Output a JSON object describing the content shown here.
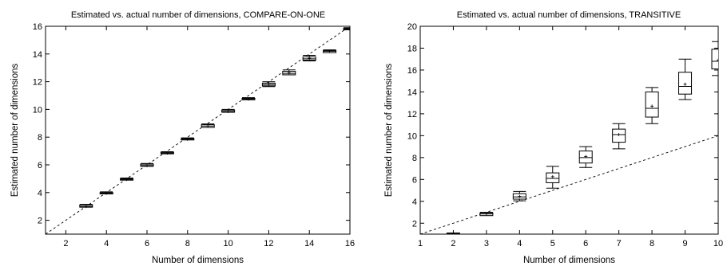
{
  "chart_data": [
    {
      "type": "boxplot",
      "title": "Estimated vs. actual number of dimensions, COMPARE-ON-ONE",
      "xlabel": "Number of dimensions",
      "ylabel": "Estimated number of dimensions",
      "xlim": [
        1,
        16
      ],
      "ylim": [
        1,
        16
      ],
      "xticks": [
        "2",
        "4",
        "6",
        "8",
        "10",
        "12",
        "14",
        "16"
      ],
      "yticks": [
        "2",
        "4",
        "6",
        "8",
        "10",
        "12",
        "14",
        "16"
      ],
      "reference_line": "y = x (dashed)",
      "x": [
        3,
        4,
        5,
        6,
        7,
        8,
        9,
        10,
        11,
        12,
        13,
        14,
        15,
        16
      ],
      "boxes": [
        {
          "x": 3,
          "min": 2.95,
          "q1": 2.95,
          "median": 3.0,
          "q3": 3.1,
          "max": 3.15,
          "mean": 3.0
        },
        {
          "x": 4,
          "min": 3.9,
          "q1": 3.9,
          "median": 3.95,
          "q3": 4.0,
          "max": 4.05,
          "mean": 3.95
        },
        {
          "x": 5,
          "min": 4.9,
          "q1": 4.9,
          "median": 4.95,
          "q3": 5.0,
          "max": 5.05,
          "mean": 4.95
        },
        {
          "x": 6,
          "min": 5.9,
          "q1": 5.9,
          "median": 5.95,
          "q3": 6.05,
          "max": 6.1,
          "mean": 5.95
        },
        {
          "x": 7,
          "min": 6.8,
          "q1": 6.8,
          "median": 6.85,
          "q3": 6.9,
          "max": 6.95,
          "mean": 6.85
        },
        {
          "x": 8,
          "min": 7.8,
          "q1": 7.8,
          "median": 7.85,
          "q3": 7.9,
          "max": 7.95,
          "mean": 7.85
        },
        {
          "x": 9,
          "min": 8.7,
          "q1": 8.7,
          "median": 8.8,
          "q3": 8.9,
          "max": 8.95,
          "mean": 8.8
        },
        {
          "x": 10,
          "min": 9.8,
          "q1": 9.8,
          "median": 9.85,
          "q3": 9.95,
          "max": 10.0,
          "mean": 9.85
        },
        {
          "x": 11,
          "min": 10.7,
          "q1": 10.7,
          "median": 10.75,
          "q3": 10.8,
          "max": 10.85,
          "mean": 10.75
        },
        {
          "x": 12,
          "min": 11.65,
          "q1": 11.7,
          "median": 11.8,
          "q3": 11.9,
          "max": 12.0,
          "mean": 11.8
        },
        {
          "x": 13,
          "min": 12.5,
          "q1": 12.5,
          "median": 12.6,
          "q3": 12.75,
          "max": 12.85,
          "mean": 12.65
        },
        {
          "x": 14,
          "min": 13.5,
          "q1": 13.55,
          "median": 13.65,
          "q3": 13.8,
          "max": 13.9,
          "mean": 13.7
        },
        {
          "x": 15,
          "min": 14.1,
          "q1": 14.1,
          "median": 14.2,
          "q3": 14.25,
          "max": 14.3,
          "mean": 14.2
        },
        {
          "x": 16,
          "min": 15.75,
          "q1": 15.75,
          "median": 15.8,
          "q3": 15.85,
          "max": 15.9,
          "mean": 15.8
        }
      ]
    },
    {
      "type": "boxplot",
      "title": "Estimated vs. actual number of dimensions, TRANSITIVE",
      "xlabel": "Number of dimensions",
      "ylabel": "Estimated number of dimensions",
      "xlim": [
        1,
        10
      ],
      "ylim": [
        1,
        20
      ],
      "xticks": [
        "1",
        "2",
        "3",
        "4",
        "5",
        "6",
        "7",
        "8",
        "9",
        "10"
      ],
      "yticks": [
        "2",
        "4",
        "6",
        "8",
        "10",
        "12",
        "14",
        "16",
        "18",
        "20"
      ],
      "reference_line": "y = x (dashed)",
      "x": [
        2,
        3,
        4,
        5,
        6,
        7,
        8,
        9,
        10
      ],
      "boxes": [
        {
          "x": 2,
          "min": 1.0,
          "q1": 1.0,
          "median": 1.05,
          "q3": 1.1,
          "max": 1.1,
          "mean": 1.05
        },
        {
          "x": 3,
          "min": 2.7,
          "q1": 2.7,
          "median": 2.85,
          "q3": 2.95,
          "max": 3.0,
          "mean": 2.85
        },
        {
          "x": 4,
          "min": 4.05,
          "q1": 4.2,
          "median": 4.4,
          "q3": 4.7,
          "max": 4.9,
          "mean": 4.45
        },
        {
          "x": 5,
          "min": 5.2,
          "q1": 5.7,
          "median": 6.1,
          "q3": 6.6,
          "max": 7.2,
          "mean": 6.25
        },
        {
          "x": 6,
          "min": 7.1,
          "q1": 7.5,
          "median": 8.0,
          "q3": 8.6,
          "max": 9.0,
          "mean": 8.1
        },
        {
          "x": 7,
          "min": 8.8,
          "q1": 9.4,
          "median": 10.1,
          "q3": 10.6,
          "max": 11.1,
          "mean": 10.1
        },
        {
          "x": 8,
          "min": 11.1,
          "q1": 11.7,
          "median": 12.5,
          "q3": 14.0,
          "max": 14.4,
          "mean": 12.7
        },
        {
          "x": 9,
          "min": 13.3,
          "q1": 13.8,
          "median": 14.5,
          "q3": 15.8,
          "max": 17.0,
          "mean": 14.7
        },
        {
          "x": 10,
          "min": 15.5,
          "q1": 16.1,
          "median": 16.8,
          "q3": 17.9,
          "max": 18.6,
          "mean": 16.9
        }
      ]
    }
  ]
}
